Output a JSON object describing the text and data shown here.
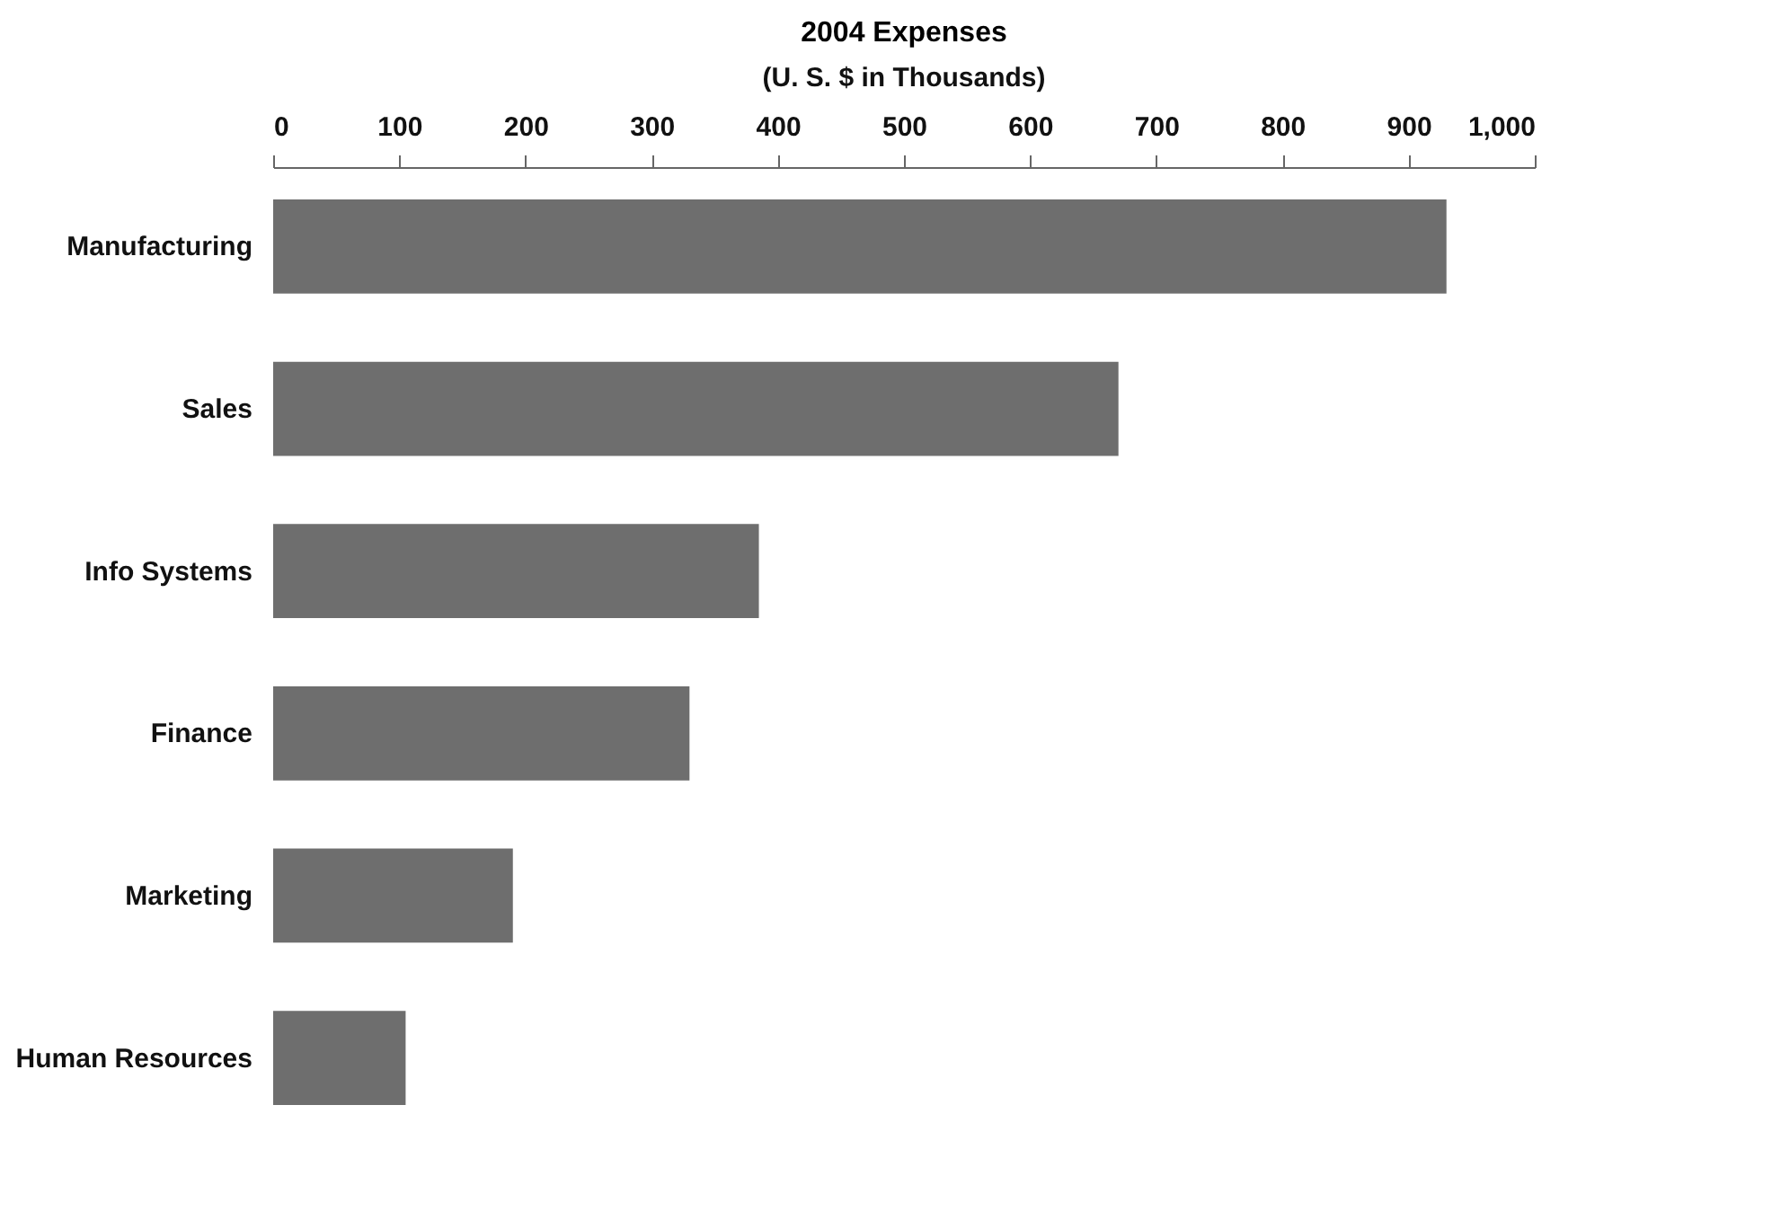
{
  "chart_data": {
    "type": "bar",
    "orientation": "horizontal",
    "title": "2004 Expenses",
    "subtitle": "(U. S. $ in Thousands)",
    "categories": [
      "Manufacturing",
      "Sales",
      "Info Systems",
      "Finance",
      "Marketing",
      "Human Resources"
    ],
    "values": [
      930,
      670,
      385,
      330,
      190,
      105
    ],
    "color": "#6e6e6e",
    "xlim": [
      0,
      1000
    ],
    "xticks": [
      0,
      100,
      200,
      300,
      400,
      500,
      600,
      700,
      800,
      900,
      {
        "value": 1000,
        "label": "1,000"
      }
    ],
    "grid": false
  }
}
